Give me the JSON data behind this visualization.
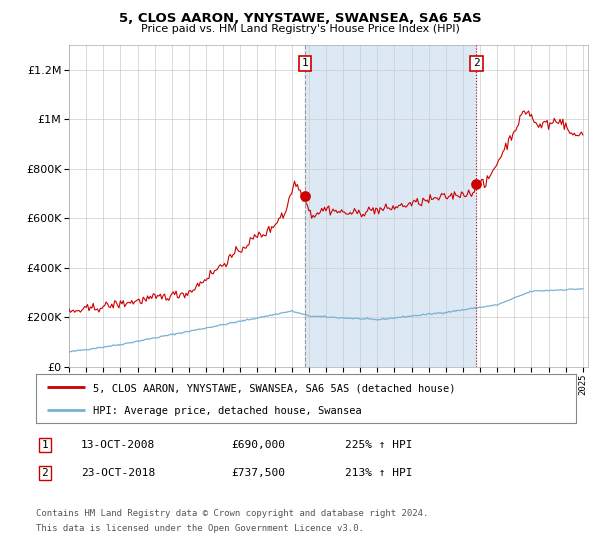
{
  "title": "5, CLOS AARON, YNYSTAWE, SWANSEA, SA6 5AS",
  "subtitle": "Price paid vs. HM Land Registry's House Price Index (HPI)",
  "red_label": "5, CLOS AARON, YNYSTAWE, SWANSEA, SA6 5AS (detached house)",
  "blue_label": "HPI: Average price, detached house, Swansea",
  "sale1_date": "13-OCT-2008",
  "sale1_price": 690000,
  "sale1_price_str": "£690,000",
  "sale1_pct": "225% ↑ HPI",
  "sale2_date": "23-OCT-2018",
  "sale2_price": 737500,
  "sale2_price_str": "£737,500",
  "sale2_pct": "213% ↑ HPI",
  "footnote1": "Contains HM Land Registry data © Crown copyright and database right 2024.",
  "footnote2": "This data is licensed under the Open Government Licence v3.0.",
  "ylim": [
    0,
    1300000
  ],
  "year_start": 1995,
  "year_end": 2025,
  "red_color": "#cc0000",
  "blue_color": "#7ab0d4",
  "background_color": "#ffffff",
  "shade_color": "#dce9f5",
  "grid_color": "#cccccc",
  "sale1_year": 2008.79,
  "sale2_year": 2018.79
}
